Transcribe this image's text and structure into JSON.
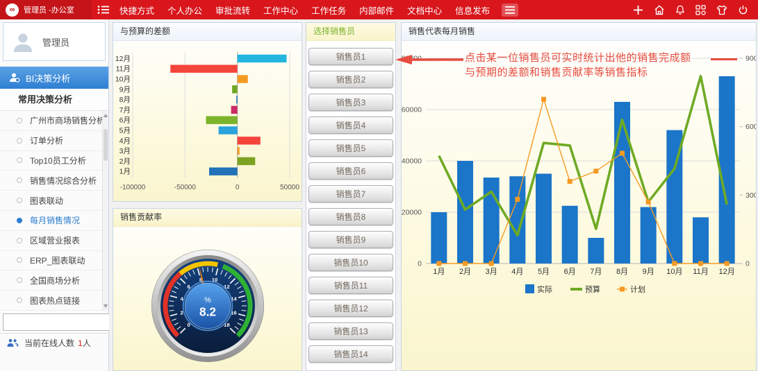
{
  "topbar": {
    "logo": "∞",
    "user_label": "管理员 -办公室",
    "menu": [
      "快捷方式",
      "个人办公",
      "审批流转",
      "工作中心",
      "工作任务",
      "内部邮件",
      "文档中心",
      "信息发布"
    ],
    "right_icons": [
      "plus",
      "home",
      "bell",
      "apps",
      "shirt",
      "power"
    ]
  },
  "sidebar": {
    "user": "管理员",
    "section": "BI决策分析",
    "group_title": "常用决策分析",
    "items": [
      "广州市商场销售分析",
      "订单分析",
      "Top10员工分析",
      "销售情况综合分析",
      "图表联动",
      "每月销售情况",
      "区域营业报表",
      "ERP_图表联动",
      "全国商场分析",
      "图表热点链接"
    ],
    "active_index": 5,
    "search_placeholder": "",
    "online_label": "当前在线人数",
    "online_count": "1",
    "online_suffix": "人"
  },
  "panels": {
    "budget_diff": {
      "title": "与预算的差额"
    },
    "contribution": {
      "title": "销售贡献率"
    },
    "select_sales": {
      "title": "选择销售员",
      "buttons": [
        "销售员1",
        "销售员2",
        "销售员3",
        "销售员4",
        "销售员5",
        "销售员6",
        "销售员7",
        "销售员8",
        "销售员9",
        "销售员10",
        "销售员11",
        "销售员12",
        "销售员13",
        "销售员14"
      ]
    },
    "monthly": {
      "title": "销售代表每月销售"
    }
  },
  "annotation": {
    "line1": "点击某一位销售员可实时统计出他的销售完成额",
    "line2": "与预期的差额和销售贡献率等销售指标"
  },
  "colors": {
    "topbar": "#d8161c",
    "topbar_left": "#c41419",
    "accent_blue": "#2a7fd0",
    "annotation_red": "#e64c3f",
    "panel_yellow": "#faf5cd",
    "bar_blue": "#1b75c8",
    "line_green": "#6faa25",
    "line_orange": "#f59a23"
  },
  "chart_data": [
    {
      "id": "budget_diff",
      "type": "bar",
      "orientation": "horizontal",
      "title": "与预算的差额",
      "categories": [
        "12月",
        "11月",
        "10月",
        "9月",
        "8月",
        "7月",
        "6月",
        "5月",
        "4月",
        "3月",
        "2月",
        "1月"
      ],
      "values": [
        47000,
        -64000,
        10000,
        -5000,
        -1000,
        -6000,
        -30000,
        -18000,
        22000,
        2000,
        17000,
        -27000
      ],
      "bar_colors": [
        "#25b6e0",
        "#f4453c",
        "#f59a23",
        "#6fa721",
        "#2272c3",
        "#cc2b66",
        "#7db32a",
        "#2aa3dc",
        "#f4453c",
        "#f59a23",
        "#7ba321",
        "#2272b9"
      ],
      "xlim": [
        -100000,
        50000
      ],
      "xticks": [
        -100000,
        -50000,
        0,
        50000
      ],
      "grid": true
    },
    {
      "id": "gauge",
      "type": "gauge",
      "title": "销售贡献率",
      "value": 8.2,
      "unit": "%",
      "min": 0,
      "max": 18,
      "major_ticks": [
        0,
        2,
        4,
        6,
        8,
        10,
        12,
        14,
        16,
        18
      ],
      "zones": [
        {
          "from": 0,
          "to": 6.3,
          "color": "#e03226"
        },
        {
          "from": 6.3,
          "to": 9.9,
          "color": "#f5c400"
        },
        {
          "from": 10.4,
          "to": 18,
          "color": "#2eb135"
        }
      ]
    },
    {
      "id": "monthly",
      "type": "combo",
      "title": "销售代表每月销售",
      "categories": [
        "1月",
        "2月",
        "3月",
        "4月",
        "5月",
        "6月",
        "7月",
        "8月",
        "9月",
        "10月",
        "11月",
        "12月"
      ],
      "series": [
        {
          "name": "实际",
          "type": "bar",
          "color": "#1b75c8",
          "axis": "left",
          "values": [
            20000,
            40000,
            33500,
            34000,
            35000,
            22500,
            10000,
            63000,
            22000,
            52000,
            18000,
            73000
          ]
        },
        {
          "name": "预算",
          "type": "line",
          "color": "#6faa25",
          "axis": "left",
          "values": [
            42000,
            21000,
            28000,
            11000,
            47000,
            46000,
            13500,
            56000,
            24000,
            37000,
            73000,
            23000
          ]
        },
        {
          "name": "计划",
          "type": "line-marker",
          "color": "#f59a23",
          "axis": "left",
          "values": [
            0,
            0,
            0,
            25000,
            64000,
            32000,
            36000,
            43000,
            24000,
            0,
            0,
            0
          ]
        }
      ],
      "ylim_left": [
        0,
        80000
      ],
      "yticks_left": [
        0,
        20000,
        40000,
        60000,
        80000
      ],
      "ylim_right": [
        0,
        90000
      ],
      "yticks_right": [
        0,
        30000,
        60000,
        90000
      ],
      "legend_position": "bottom",
      "grid": true
    }
  ]
}
